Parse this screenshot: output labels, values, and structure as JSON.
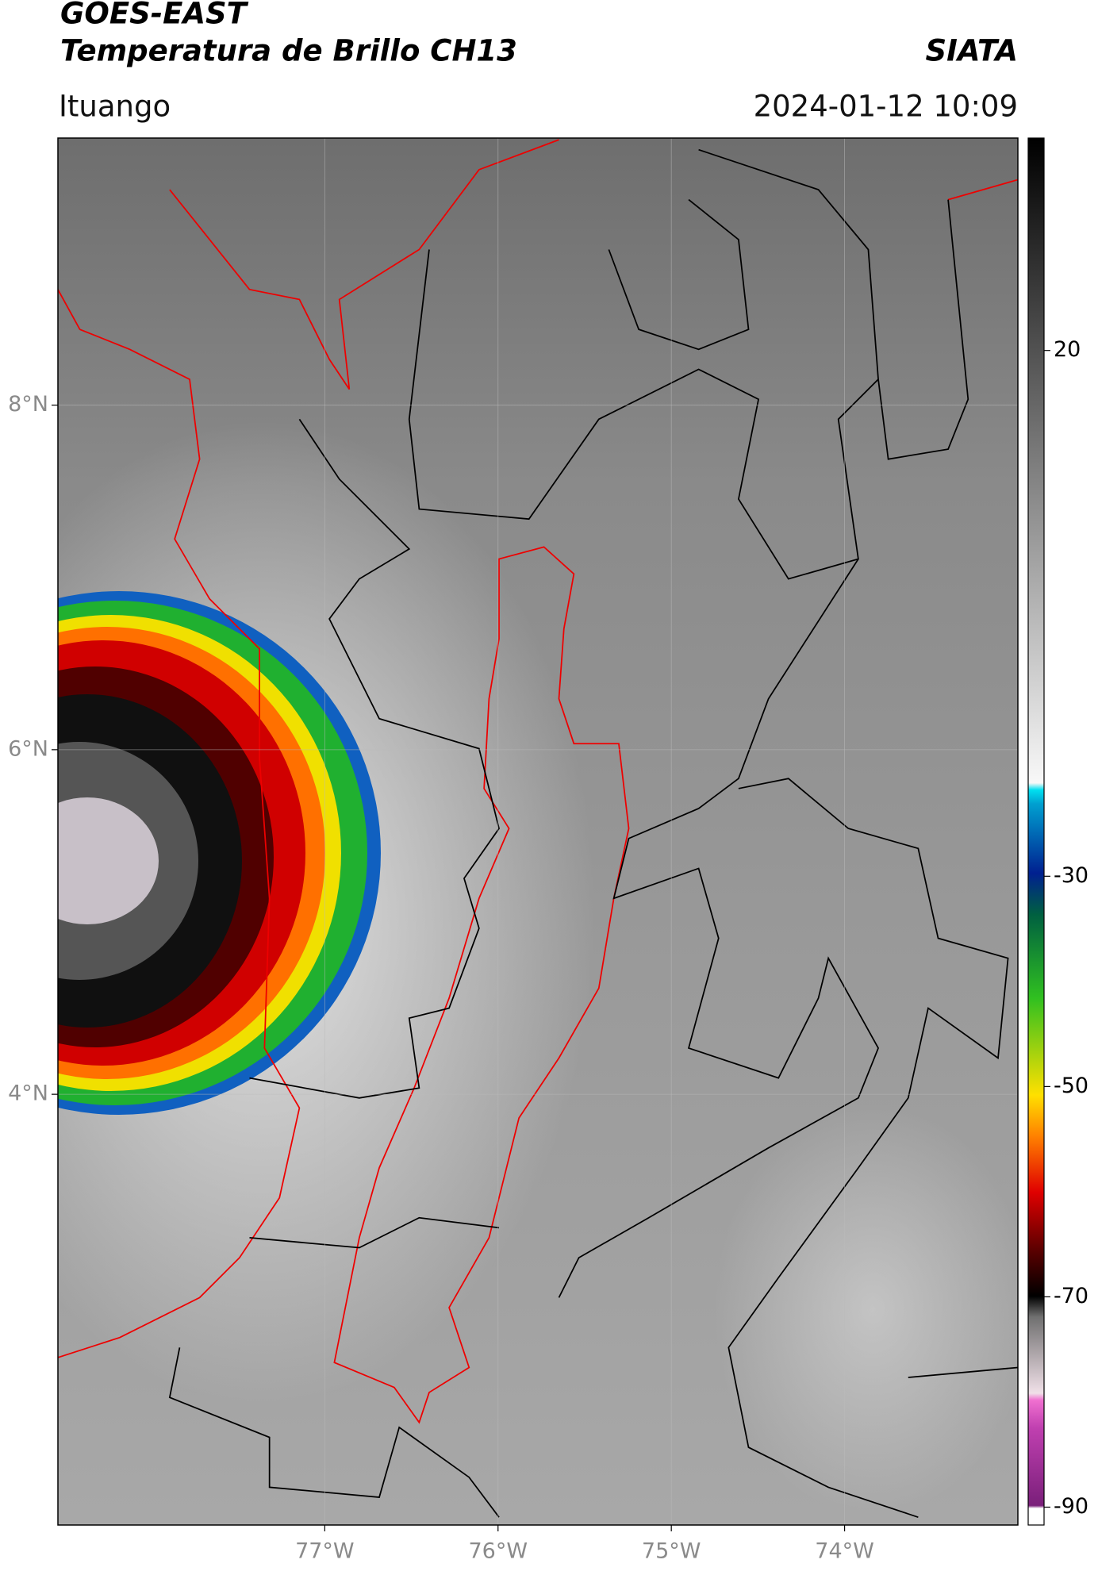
{
  "header": {
    "title": "GOES-EAST",
    "subtitle": "Temperatura de Brillo CH13",
    "brand": "SIATA",
    "location": "Ituango",
    "timestamp": "2024-01-12 10:09"
  },
  "map": {
    "xlim": [
      -78.54,
      -73.0
    ],
    "ylim": [
      1.5,
      9.55
    ],
    "xticks": [
      {
        "value": -77,
        "label": "77°W"
      },
      {
        "value": -76,
        "label": "76°W"
      },
      {
        "value": -75,
        "label": "75°W"
      },
      {
        "value": -74,
        "label": "74°W"
      }
    ],
    "yticks": [
      {
        "value": 8,
        "label": "8°N"
      },
      {
        "value": 6,
        "label": "6°N"
      },
      {
        "value": 4,
        "label": "4°N"
      }
    ]
  },
  "colorbar": {
    "lim": [
      -91.7,
      40.2
    ],
    "ticks": [
      20,
      -30,
      -50,
      -70,
      -90
    ]
  }
}
